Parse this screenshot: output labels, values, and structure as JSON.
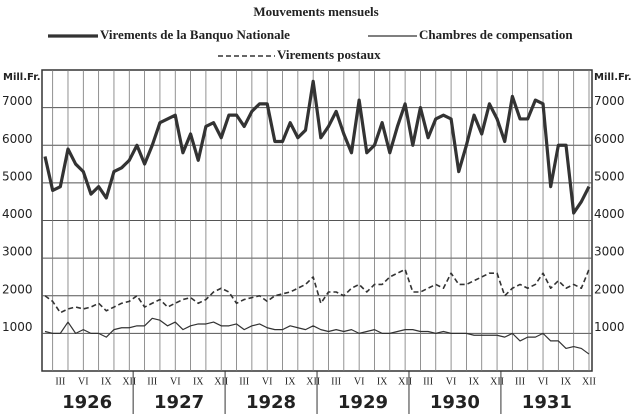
{
  "chart_data": {
    "type": "line",
    "title": "Mouvements mensuels",
    "y_unit": "Mill.Fr.",
    "categories": [
      null,
      null,
      "III",
      null,
      null,
      "VI",
      null,
      null,
      "IX",
      null,
      null,
      "XII",
      null,
      null,
      "III",
      null,
      null,
      "VI",
      null,
      null,
      "IX",
      null,
      null,
      "XII",
      null,
      null,
      "III",
      null,
      null,
      "VI",
      null,
      null,
      "IX",
      null,
      null,
      "XII",
      null,
      null,
      "III",
      null,
      null,
      "VI",
      null,
      null,
      "IX",
      null,
      null,
      "XII",
      null,
      null,
      "III",
      null,
      null,
      "VI",
      null,
      null,
      "IX",
      null,
      null,
      "XII",
      null,
      null,
      "III",
      null,
      null,
      "VI",
      null,
      null,
      "IX",
      null,
      null,
      "XII"
    ],
    "years": [
      "1926",
      "1927",
      "1928",
      "1929",
      "1930",
      "1931"
    ],
    "ylim": [
      0,
      8000
    ],
    "yticks": [
      1000,
      2000,
      3000,
      4000,
      5000,
      6000,
      7000
    ],
    "grid": true,
    "series": [
      {
        "name": "Virements de la Banquo Nationale",
        "color": "#333",
        "style": "thick",
        "values": [
          5700,
          4800,
          4900,
          5900,
          5500,
          5300,
          4700,
          4900,
          4600,
          5300,
          5400,
          5600,
          6000,
          5500,
          6000,
          6600,
          6700,
          6800,
          5800,
          6300,
          5600,
          6500,
          6600,
          6200,
          6800,
          6800,
          6500,
          6900,
          7100,
          7100,
          6100,
          6100,
          6600,
          6200,
          6400,
          7700,
          6200,
          6500,
          6900,
          6300,
          5800,
          7200,
          5800,
          6000,
          6600,
          5800,
          6500,
          7100,
          6000,
          7000,
          6200,
          6700,
          6800,
          6700,
          5300,
          6000,
          6800,
          6300,
          7100,
          6700,
          6100,
          7300,
          6700,
          6700,
          7200,
          7100,
          4900,
          6000,
          6000,
          4200,
          4500,
          4900
        ]
      },
      {
        "name": "Chambres de compensation",
        "color": "#333",
        "style": "thin",
        "values": [
          1050,
          1000,
          1000,
          1300,
          1000,
          1100,
          1000,
          1000,
          900,
          1100,
          1150,
          1150,
          1200,
          1200,
          1400,
          1350,
          1200,
          1300,
          1100,
          1200,
          1250,
          1250,
          1300,
          1200,
          1200,
          1250,
          1100,
          1200,
          1250,
          1150,
          1100,
          1100,
          1200,
          1150,
          1100,
          1200,
          1100,
          1050,
          1100,
          1050,
          1100,
          1000,
          1050,
          1100,
          1000,
          1000,
          1050,
          1100,
          1100,
          1050,
          1050,
          1000,
          1050,
          1000,
          1000,
          1000,
          950,
          950,
          950,
          950,
          900,
          1000,
          800,
          900,
          900,
          1000,
          800,
          800,
          600,
          650,
          600,
          450
        ]
      },
      {
        "name": "Virements postaux",
        "color": "#333",
        "style": "dashed",
        "values": [
          2000,
          1850,
          1550,
          1650,
          1700,
          1650,
          1700,
          1800,
          1600,
          1700,
          1800,
          1850,
          2000,
          1700,
          1800,
          1900,
          1700,
          1800,
          1900,
          1950,
          1800,
          1900,
          2100,
          2200,
          2100,
          1800,
          1900,
          1950,
          2000,
          1850,
          2000,
          2050,
          2100,
          2200,
          2300,
          2500,
          1800,
          2100,
          2100,
          2000,
          2200,
          2300,
          2100,
          2300,
          2300,
          2500,
          2600,
          2700,
          2100,
          2100,
          2200,
          2300,
          2200,
          2600,
          2300,
          2300,
          2400,
          2500,
          2600,
          2600,
          2000,
          2200,
          2300,
          2200,
          2300,
          2600,
          2200,
          2400,
          2200,
          2300,
          2200,
          2700
        ]
      }
    ]
  }
}
